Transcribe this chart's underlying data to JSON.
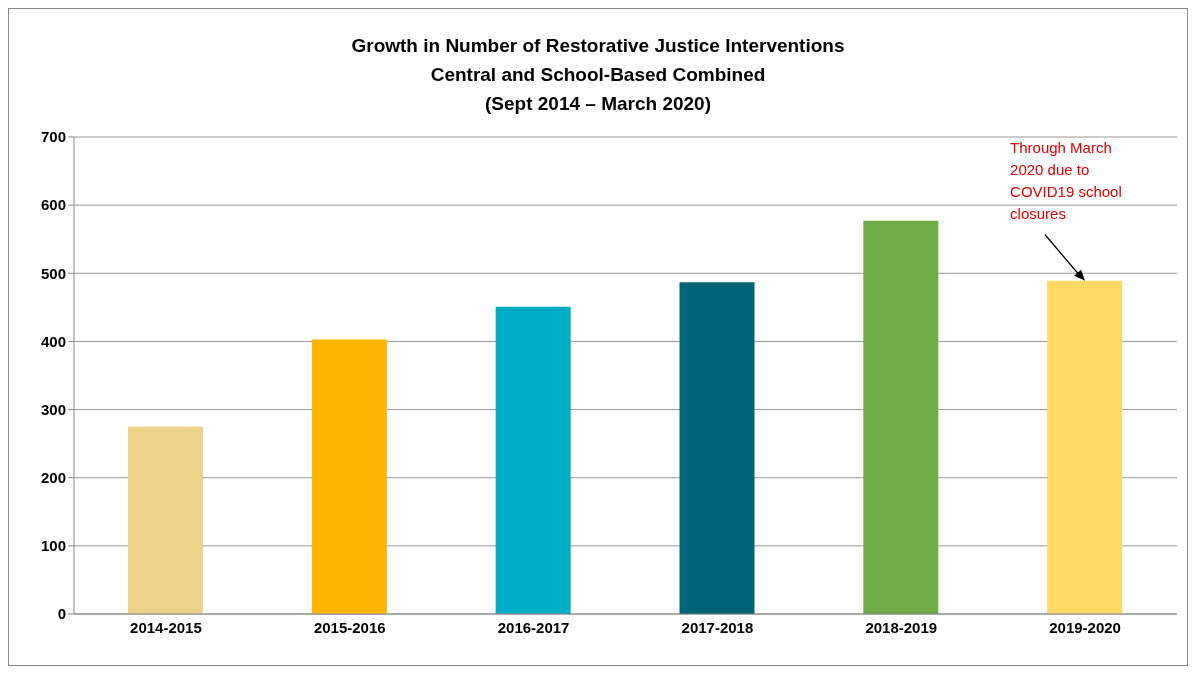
{
  "chart_data": {
    "type": "bar",
    "title": "Growth in Number of Restorative Justice Interventions\nCentral and School-Based Combined\n(Sept 2014 – March 2020)",
    "categories": [
      "2014-2015",
      "2015-2016",
      "2016-2017",
      "2017-2018",
      "2018-2019",
      "2019-2020"
    ],
    "values": [
      275,
      403,
      451,
      487,
      577,
      489
    ],
    "colors": [
      "#edd38a",
      "#ffb400",
      "#00adc6",
      "#006479",
      "#70ad47",
      "#ffd966"
    ],
    "ylim": [
      0,
      700
    ],
    "yticks": [
      0,
      100,
      200,
      300,
      400,
      500,
      600,
      700
    ],
    "grid": "y",
    "annotations": [
      {
        "text": "Through March 2020 due to COVID19 school closures",
        "x": "2019-2020",
        "y": 489
      }
    ]
  }
}
